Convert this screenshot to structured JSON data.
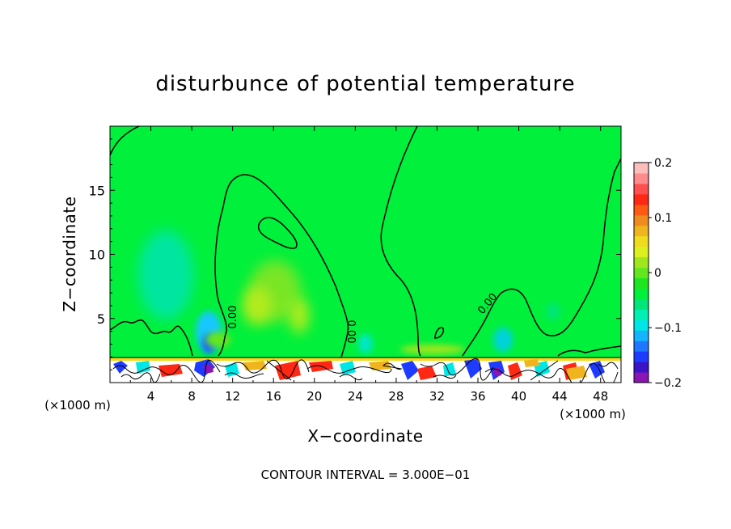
{
  "chart_data": {
    "type": "heatmap",
    "title": "disturbunce of potential temperature",
    "xlabel": "X−coordinate",
    "ylabel": "Z−coordinate",
    "x_unit_left": "(×1000 m)",
    "x_unit_right": "(×1000 m)",
    "xlim": [
      0,
      50
    ],
    "ylim": [
      0,
      20
    ],
    "x_ticks": [
      "4",
      "8",
      "12",
      "16",
      "20",
      "24",
      "28",
      "32",
      "36",
      "40",
      "44",
      "48"
    ],
    "x_tick_values": [
      4,
      8,
      12,
      16,
      20,
      24,
      28,
      32,
      36,
      40,
      44,
      48
    ],
    "y_ticks": [
      "5",
      "10",
      "15"
    ],
    "y_tick_values": [
      5,
      10,
      15
    ],
    "colorbar": {
      "range": [
        -0.2,
        0.2
      ],
      "tick_labels": [
        "0.2",
        "0.1",
        "0",
        "−0.1",
        "−0.2"
      ],
      "tick_values": [
        0.2,
        0.1,
        0,
        -0.1,
        -0.2
      ],
      "colors": [
        "#8a14b4",
        "#3c14c8",
        "#1e3cff",
        "#1e78ff",
        "#14b4ff",
        "#00e6e6",
        "#00f0b4",
        "#00e678",
        "#00f03c",
        "#1ee61e",
        "#64e61e",
        "#a0e61e",
        "#dcf01e",
        "#f0dc1e",
        "#f0b41e",
        "#f08c1e",
        "#ff5a14",
        "#ff2814",
        "#ff5050",
        "#ff8c8c",
        "#ffbebe"
      ]
    },
    "contour_labels": [
      "0.00",
      "0.00",
      "0.00"
    ],
    "footer": "CONTOUR INTERVAL = 3.000E−01"
  }
}
